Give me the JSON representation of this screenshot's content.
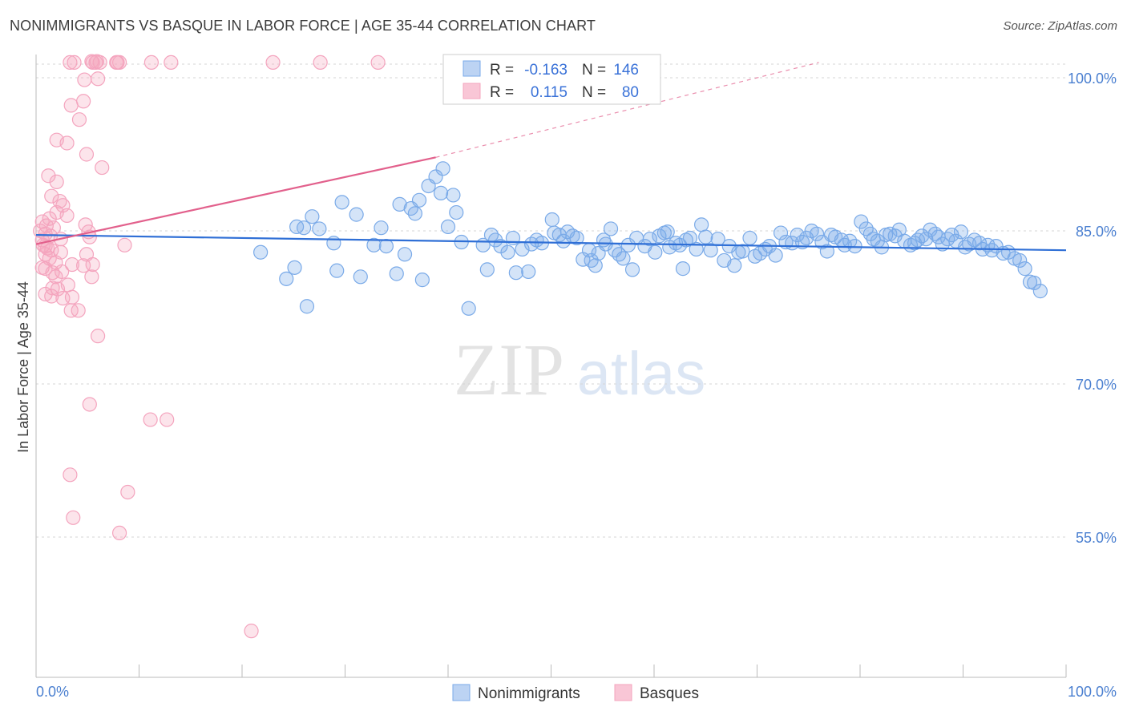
{
  "title": "NONIMMIGRANTS VS BASQUE IN LABOR FORCE | AGE 35-44 CORRELATION CHART",
  "source": "Source: ZipAtlas.com",
  "watermark": {
    "zip": "ZIP",
    "atlas": "atlas"
  },
  "chart_data": {
    "type": "scatter",
    "title": "NONIMMIGRANTS VS BASQUE IN LABOR FORCE | AGE 35-44 CORRELATION CHART",
    "xlabel": "",
    "ylabel": "In Labor Force | Age 35-44",
    "xlim": [
      0,
      100
    ],
    "ylim": [
      40,
      102
    ],
    "x_tick_labels": [
      "0.0%",
      "100.0%"
    ],
    "y_ticks": [
      {
        "value": 100,
        "label": "100.0%"
      },
      {
        "value": 85,
        "label": "85.0%"
      },
      {
        "value": 70,
        "label": "70.0%"
      },
      {
        "value": 55,
        "label": "55.0%"
      }
    ],
    "stats": [
      {
        "r_label": "R =",
        "r": "-0.163",
        "n_label": "N =",
        "n": "146"
      },
      {
        "r_label": "R =",
        "r": "0.115",
        "n_label": "N =",
        "n": "80"
      }
    ],
    "series": [
      {
        "name": "Nonimmigrants",
        "color": "#7aaae8",
        "line_color": "#2f6fd6",
        "trend": {
          "x0": 0,
          "y0": 84.6,
          "x1": 100,
          "y1": 83.1
        },
        "points": [
          [
            21.8,
            82.9
          ],
          [
            24.3,
            80.3
          ],
          [
            25.1,
            81.4
          ],
          [
            25.3,
            85.4
          ],
          [
            26.0,
            85.3
          ],
          [
            26.3,
            77.6
          ],
          [
            26.8,
            86.4
          ],
          [
            27.5,
            85.2
          ],
          [
            28.9,
            83.8
          ],
          [
            29.7,
            87.8
          ],
          [
            29.2,
            81.1
          ],
          [
            31.1,
            86.6
          ],
          [
            31.5,
            80.5
          ],
          [
            32.8,
            83.6
          ],
          [
            33.5,
            85.3
          ],
          [
            34.0,
            83.5
          ],
          [
            35.0,
            80.8
          ],
          [
            35.3,
            87.6
          ],
          [
            35.8,
            82.7
          ],
          [
            36.4,
            87.2
          ],
          [
            36.8,
            86.7
          ],
          [
            37.2,
            88.0
          ],
          [
            37.5,
            80.2
          ],
          [
            38.1,
            89.4
          ],
          [
            38.8,
            90.3
          ],
          [
            39.3,
            88.7
          ],
          [
            39.5,
            91.1
          ],
          [
            40.0,
            85.4
          ],
          [
            40.5,
            88.5
          ],
          [
            40.8,
            86.8
          ],
          [
            41.3,
            83.9
          ],
          [
            42.0,
            77.4
          ],
          [
            43.4,
            83.6
          ],
          [
            43.8,
            81.2
          ],
          [
            44.2,
            84.6
          ],
          [
            44.6,
            84.1
          ],
          [
            45.1,
            83.5
          ],
          [
            45.8,
            82.9
          ],
          [
            46.3,
            84.3
          ],
          [
            46.6,
            80.9
          ],
          [
            47.2,
            83.2
          ],
          [
            47.8,
            81.0
          ],
          [
            48.1,
            83.7
          ],
          [
            48.6,
            84.1
          ],
          [
            49.1,
            83.8
          ],
          [
            50.1,
            86.1
          ],
          [
            50.3,
            84.8
          ],
          [
            50.8,
            84.6
          ],
          [
            51.2,
            84.0
          ],
          [
            51.6,
            84.9
          ],
          [
            52.1,
            84.5
          ],
          [
            52.5,
            84.3
          ],
          [
            53.1,
            82.2
          ],
          [
            53.7,
            83.1
          ],
          [
            53.9,
            82.1
          ],
          [
            54.3,
            81.6
          ],
          [
            54.6,
            82.8
          ],
          [
            55.1,
            84.1
          ],
          [
            55.3,
            83.7
          ],
          [
            55.8,
            85.2
          ],
          [
            56.2,
            83.1
          ],
          [
            56.6,
            82.7
          ],
          [
            57.0,
            82.3
          ],
          [
            57.5,
            83.6
          ],
          [
            57.9,
            81.2
          ],
          [
            58.3,
            84.3
          ],
          [
            59.1,
            83.5
          ],
          [
            59.6,
            84.2
          ],
          [
            60.1,
            82.9
          ],
          [
            60.5,
            84.5
          ],
          [
            61.0,
            84.8
          ],
          [
            61.3,
            84.9
          ],
          [
            61.5,
            83.4
          ],
          [
            62.1,
            83.8
          ],
          [
            62.5,
            83.6
          ],
          [
            62.8,
            81.3
          ],
          [
            63.1,
            84.1
          ],
          [
            63.5,
            84.3
          ],
          [
            64.1,
            83.2
          ],
          [
            64.6,
            85.6
          ],
          [
            65.0,
            84.4
          ],
          [
            65.5,
            83.1
          ],
          [
            66.2,
            84.2
          ],
          [
            66.8,
            82.1
          ],
          [
            67.3,
            83.5
          ],
          [
            67.8,
            81.6
          ],
          [
            68.2,
            82.9
          ],
          [
            68.6,
            83.0
          ],
          [
            69.3,
            84.3
          ],
          [
            69.8,
            82.5
          ],
          [
            70.3,
            82.8
          ],
          [
            70.8,
            83.2
          ],
          [
            71.2,
            83.5
          ],
          [
            71.8,
            82.6
          ],
          [
            72.3,
            84.8
          ],
          [
            72.8,
            83.9
          ],
          [
            73.4,
            83.8
          ],
          [
            73.9,
            84.6
          ],
          [
            74.4,
            83.9
          ],
          [
            74.8,
            84.3
          ],
          [
            75.3,
            85.0
          ],
          [
            75.8,
            84.7
          ],
          [
            76.3,
            83.9
          ],
          [
            76.8,
            83.0
          ],
          [
            77.2,
            84.6
          ],
          [
            77.6,
            84.4
          ],
          [
            78.2,
            84.1
          ],
          [
            78.5,
            83.6
          ],
          [
            79.0,
            84.0
          ],
          [
            79.5,
            83.5
          ],
          [
            80.1,
            85.9
          ],
          [
            80.6,
            85.2
          ],
          [
            81.0,
            84.7
          ],
          [
            81.3,
            84.2
          ],
          [
            81.7,
            84.0
          ],
          [
            82.1,
            83.4
          ],
          [
            82.5,
            84.6
          ],
          [
            82.9,
            84.7
          ],
          [
            83.4,
            84.5
          ],
          [
            83.8,
            85.1
          ],
          [
            84.3,
            84.0
          ],
          [
            84.9,
            83.6
          ],
          [
            85.3,
            83.8
          ],
          [
            85.6,
            84.1
          ],
          [
            86.0,
            84.5
          ],
          [
            86.4,
            84.2
          ],
          [
            86.8,
            85.1
          ],
          [
            87.3,
            84.7
          ],
          [
            87.6,
            84.4
          ],
          [
            88.0,
            83.7
          ],
          [
            88.5,
            84.2
          ],
          [
            88.9,
            84.6
          ],
          [
            89.3,
            84.0
          ],
          [
            89.8,
            84.9
          ],
          [
            90.2,
            83.4
          ],
          [
            90.6,
            83.7
          ],
          [
            91.1,
            84.1
          ],
          [
            91.6,
            83.8
          ],
          [
            91.9,
            83.2
          ],
          [
            92.4,
            83.6
          ],
          [
            92.8,
            83.1
          ],
          [
            93.2,
            83.5
          ],
          [
            93.9,
            82.8
          ],
          [
            94.4,
            82.9
          ],
          [
            95.0,
            82.3
          ],
          [
            95.5,
            82.1
          ],
          [
            96.0,
            81.3
          ],
          [
            96.5,
            80.0
          ],
          [
            96.9,
            79.9
          ],
          [
            97.5,
            79.1
          ]
        ]
      },
      {
        "name": "Basques",
        "color": "#f4a4be",
        "line_color": "#e2608c",
        "trend": {
          "x0": 0,
          "y0": 83.7,
          "x1": 38.8,
          "y1": 92.2
        },
        "trend_dashed": {
          "x0": 38.8,
          "y0": 92.2,
          "x1": 76.0,
          "y1": 101.5
        },
        "points": [
          [
            3.3,
            101.5
          ],
          [
            3.7,
            101.5
          ],
          [
            5.5,
            101.5
          ],
          [
            5.8,
            101.5
          ],
          [
            6.2,
            101.5
          ],
          [
            7.8,
            101.5
          ],
          [
            8.1,
            101.5
          ],
          [
            11.2,
            101.5
          ],
          [
            13.1,
            101.5
          ],
          [
            23.0,
            101.5
          ],
          [
            27.6,
            101.5
          ],
          [
            33.2,
            101.5
          ],
          [
            5.4,
            101.6
          ],
          [
            5.9,
            101.6
          ],
          [
            7.9,
            101.5
          ],
          [
            4.7,
            99.8
          ],
          [
            6.0,
            99.9
          ],
          [
            4.6,
            97.7
          ],
          [
            3.4,
            97.3
          ],
          [
            4.2,
            95.9
          ],
          [
            2.0,
            93.9
          ],
          [
            3.0,
            93.6
          ],
          [
            4.9,
            92.5
          ],
          [
            6.4,
            91.2
          ],
          [
            1.2,
            90.4
          ],
          [
            2.0,
            89.8
          ],
          [
            1.5,
            88.4
          ],
          [
            2.3,
            87.9
          ],
          [
            2.6,
            87.5
          ],
          [
            2.0,
            86.8
          ],
          [
            3.0,
            86.5
          ],
          [
            1.3,
            86.2
          ],
          [
            0.6,
            85.9
          ],
          [
            1.0,
            85.5
          ],
          [
            1.7,
            85.3
          ],
          [
            4.8,
            85.6
          ],
          [
            0.4,
            85.0
          ],
          [
            0.9,
            84.7
          ],
          [
            1.4,
            84.5
          ],
          [
            2.4,
            84.2
          ],
          [
            0.6,
            84.1
          ],
          [
            0.7,
            83.6
          ],
          [
            1.1,
            83.3
          ],
          [
            1.5,
            83.1
          ],
          [
            2.4,
            82.9
          ],
          [
            8.6,
            83.6
          ],
          [
            0.9,
            82.7
          ],
          [
            1.3,
            82.3
          ],
          [
            1.9,
            81.9
          ],
          [
            4.9,
            82.7
          ],
          [
            0.6,
            81.4
          ],
          [
            0.9,
            81.3
          ],
          [
            1.6,
            80.9
          ],
          [
            2.5,
            81.0
          ],
          [
            3.5,
            81.7
          ],
          [
            4.6,
            81.6
          ],
          [
            5.5,
            81.7
          ],
          [
            1.9,
            80.5
          ],
          [
            5.4,
            80.5
          ],
          [
            3.1,
            79.7
          ],
          [
            1.6,
            79.4
          ],
          [
            2.1,
            79.3
          ],
          [
            0.9,
            78.8
          ],
          [
            1.5,
            78.6
          ],
          [
            2.6,
            78.4
          ],
          [
            3.5,
            78.5
          ],
          [
            3.4,
            77.2
          ],
          [
            4.1,
            77.2
          ],
          [
            5.1,
            84.9
          ],
          [
            5.2,
            84.4
          ],
          [
            6.0,
            74.7
          ],
          [
            5.2,
            68.0
          ],
          [
            11.1,
            66.5
          ],
          [
            12.7,
            66.5
          ],
          [
            3.3,
            61.1
          ],
          [
            8.9,
            59.4
          ],
          [
            3.6,
            56.9
          ],
          [
            8.1,
            55.4
          ],
          [
            20.9,
            45.8
          ],
          [
            0.9,
            83.5
          ]
        ]
      }
    ],
    "legend": [
      {
        "label": "Nonimmigrants",
        "color": "#7aaae8"
      },
      {
        "label": "Basques",
        "color": "#f4a4be"
      }
    ]
  }
}
